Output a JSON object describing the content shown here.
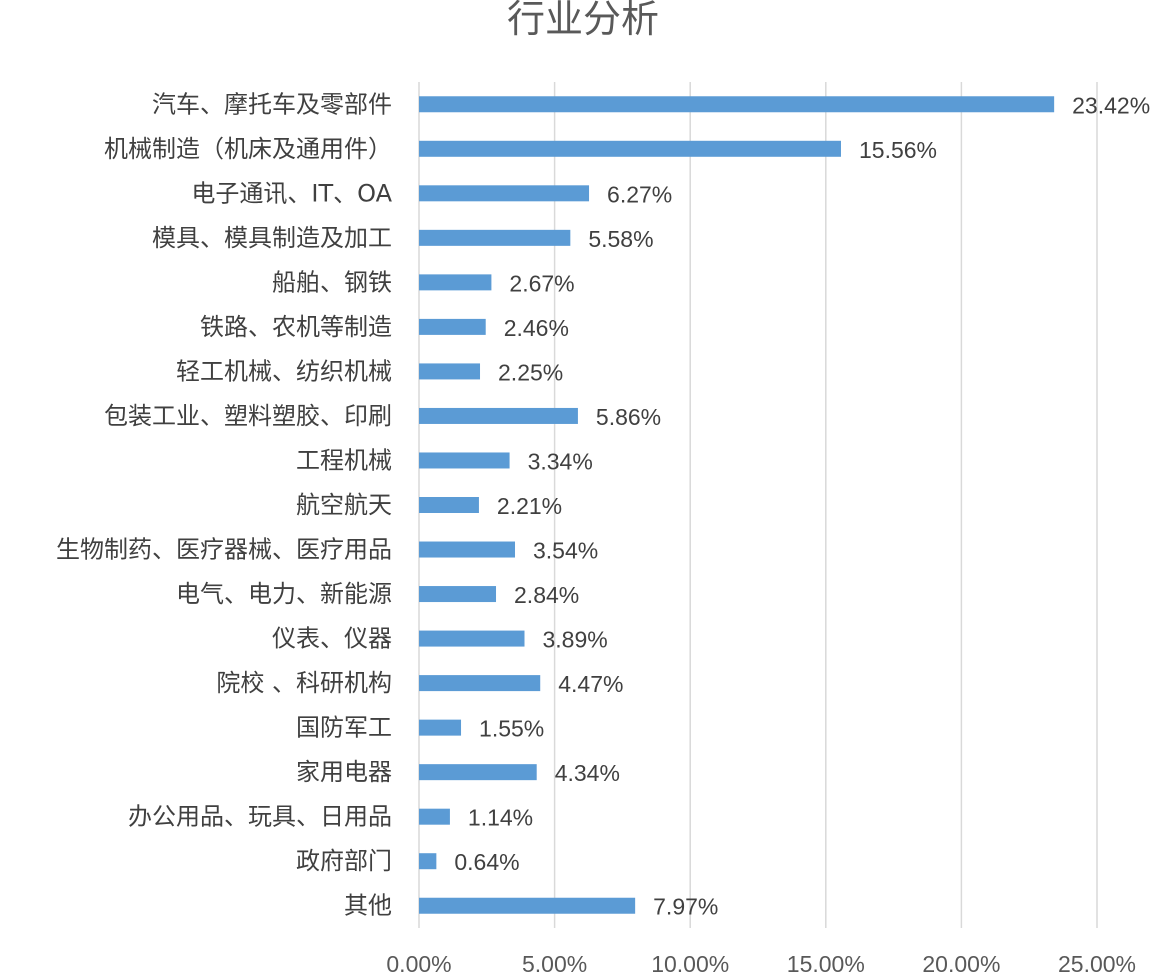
{
  "chart_data": {
    "type": "bar",
    "orientation": "horizontal",
    "title": "行业分析",
    "xlabel": "",
    "ylabel": "",
    "xlim": [
      0,
      25
    ],
    "x_ticks": [
      "0.00%",
      "5.00%",
      "10.00%",
      "15.00%",
      "20.00%",
      "25.00%"
    ],
    "grid": true,
    "bar_color": "#5b9bd5",
    "categories": [
      "汽车、摩托车及零部件",
      "机械制造（机床及通用件）",
      "电子通讯、IT、OA",
      "模具、模具制造及加工",
      "船舶、钢铁",
      "铁路、农机等制造",
      "轻工机械、纺织机械",
      "包装工业、塑料塑胶、印刷",
      "工程机械",
      "航空航天",
      "生物制药、医疗器械、医疗用品",
      "电气、电力、新能源",
      "仪表、仪器",
      "院校 、科研机构",
      "国防军工",
      "家用电器",
      "办公用品、玩具、日用品",
      "政府部门",
      "其他"
    ],
    "values": [
      23.42,
      15.56,
      6.27,
      5.58,
      2.67,
      2.46,
      2.25,
      5.86,
      3.34,
      2.21,
      3.54,
      2.84,
      3.89,
      4.47,
      1.55,
      4.34,
      1.14,
      0.64,
      7.97
    ],
    "value_labels": [
      "23.42%",
      "15.56%",
      "6.27%",
      "5.58%",
      "2.67%",
      "2.46%",
      "2.25%",
      "5.86%",
      "3.34%",
      "2.21%",
      "3.54%",
      "2.84%",
      "3.89%",
      "4.47%",
      "1.55%",
      "4.34%",
      "1.14%",
      "0.64%",
      "7.97%"
    ]
  }
}
